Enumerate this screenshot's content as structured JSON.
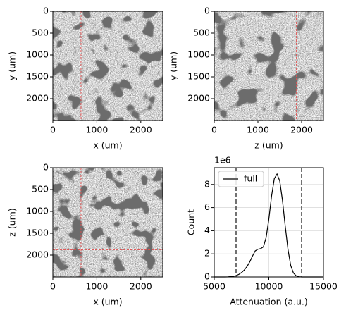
{
  "chart_data": [
    {
      "type": "image",
      "xlabel": "x (um)",
      "ylabel": "y (um)",
      "xlim": [
        0,
        2500
      ],
      "ylim": [
        0,
        2500
      ],
      "y_inverted": true,
      "xticks": [
        0,
        1000,
        2000
      ],
      "yticks": [
        0,
        500,
        1000,
        1500,
        2000
      ],
      "crosshair": {
        "x": 640,
        "y": 1250
      },
      "crosshair_color": "#e05050"
    },
    {
      "type": "image",
      "xlabel": "z (um)",
      "ylabel": "y (um)",
      "xlim": [
        0,
        2500
      ],
      "ylim": [
        0,
        2500
      ],
      "y_inverted": true,
      "xticks": [
        0,
        1000,
        2000
      ],
      "yticks": [
        0,
        500,
        1000,
        1500,
        2000
      ],
      "crosshair": {
        "x": 1880,
        "y": 1250
      },
      "crosshair_color": "#e05050"
    },
    {
      "type": "image",
      "xlabel": "x (um)",
      "ylabel": "z (um)",
      "xlim": [
        0,
        2500
      ],
      "ylim": [
        0,
        2500
      ],
      "y_inverted": true,
      "xticks": [
        0,
        1000,
        2000
      ],
      "yticks": [
        0,
        500,
        1000,
        1500,
        2000
      ],
      "crosshair": {
        "x": 640,
        "y": 1880
      },
      "crosshair_color": "#e05050"
    },
    {
      "type": "line",
      "xlabel": "Attenuation (a.u.)",
      "ylabel": "Count",
      "y_offset_label": "1e6",
      "x": [
        5000,
        5250,
        5500,
        5750,
        6000,
        6250,
        6500,
        6750,
        7000,
        7250,
        7500,
        7750,
        8000,
        8250,
        8500,
        8750,
        9000,
        9250,
        9500,
        9750,
        10000,
        10250,
        10500,
        10750,
        11000,
        11250,
        11500,
        11750,
        12000,
        12250,
        12500,
        12750,
        13000,
        13250,
        13500,
        13750,
        14000,
        14250,
        14500,
        14750,
        15000
      ],
      "series": [
        {
          "name": "full",
          "color": "#000000",
          "values": [
            0,
            0,
            0,
            0,
            0,
            10000,
            30000,
            60000,
            120000,
            220000,
            380000,
            600000,
            900000,
            1300000,
            1800000,
            2250000,
            2400000,
            2450000,
            2600000,
            3400000,
            5000000,
            7000000,
            8500000,
            8900000,
            8300000,
            6600000,
            4400000,
            2400000,
            1000000,
            350000,
            100000,
            20000,
            0,
            0,
            0,
            0,
            0,
            0,
            0,
            0,
            0
          ]
        }
      ],
      "vlines": [
        7000,
        13000
      ],
      "vline_color": "#444444",
      "xlim": [
        5000,
        15000
      ],
      "ylim": [
        0,
        9450000
      ],
      "xticks": [
        5000,
        10000,
        15000
      ],
      "yticks": [
        0,
        {
          "value": 2000000,
          "label": "2"
        },
        {
          "value": 4000000,
          "label": "4"
        },
        {
          "value": 6000000,
          "label": "6"
        },
        {
          "value": 8000000,
          "label": "8"
        }
      ],
      "grid": true,
      "legend": "upper left"
    }
  ]
}
